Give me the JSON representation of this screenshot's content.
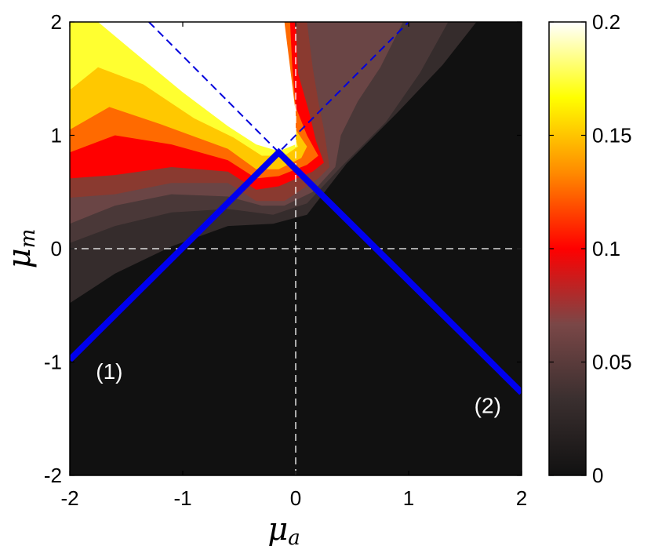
{
  "chart_data": {
    "type": "heatmap",
    "title": "",
    "xlabel": "μ",
    "xlabel_sub": "a",
    "ylabel": "μ",
    "ylabel_sub": "m",
    "xlim": [
      -2,
      2
    ],
    "ylim": [
      -2,
      2
    ],
    "x_ticks": [
      -2,
      -1,
      0,
      1,
      2
    ],
    "y_ticks": [
      -2,
      -1,
      0,
      1,
      2
    ],
    "x_tick_labels": [
      "-2",
      "-1",
      "0",
      "1",
      "2"
    ],
    "y_tick_labels": [
      "-2",
      "-1",
      "0",
      "1",
      "2"
    ],
    "colorbar": {
      "range": [
        0,
        0.2
      ],
      "ticks": [
        0,
        0.05,
        0.1,
        0.15,
        0.2
      ],
      "tick_labels": [
        "0",
        "0.05",
        "0.1",
        "0.15",
        "0.2"
      ],
      "colormap": "hot",
      "colors": [
        "#111111",
        "#3a2f2f",
        "#7a4747",
        "#ff0000",
        "#ff8a00",
        "#ffff00",
        "#ffffff"
      ]
    },
    "contour_levels": [
      {
        "level": 0.01,
        "color": "#352c2c",
        "points": [
          [
            -2,
            -0.48
          ],
          [
            -1.6,
            -0.22
          ],
          [
            -1.1,
            0.02
          ],
          [
            -0.6,
            0.2
          ],
          [
            -0.2,
            0.22
          ],
          [
            0.1,
            0.3
          ],
          [
            0.45,
            0.75
          ],
          [
            0.9,
            1.2
          ],
          [
            1.3,
            1.62
          ],
          [
            1.6,
            2.0
          ],
          [
            -2,
            2.0
          ]
        ]
      },
      {
        "level": 0.02,
        "color": "#4a3838",
        "points": [
          [
            -2,
            0.05
          ],
          [
            -1.6,
            0.2
          ],
          [
            -1.1,
            0.32
          ],
          [
            -0.6,
            0.35
          ],
          [
            -0.2,
            0.3
          ],
          [
            0.1,
            0.4
          ],
          [
            0.4,
            0.72
          ],
          [
            0.8,
            1.12
          ],
          [
            1.1,
            1.55
          ],
          [
            1.35,
            2.0
          ],
          [
            -2,
            2.0
          ]
        ]
      },
      {
        "level": 0.03,
        "color": "#6a4545",
        "points": [
          [
            -2,
            0.22
          ],
          [
            -1.6,
            0.38
          ],
          [
            -1.1,
            0.48
          ],
          [
            -0.6,
            0.46
          ],
          [
            -0.3,
            0.38
          ],
          [
            -0.1,
            0.38
          ],
          [
            0.15,
            0.5
          ],
          [
            0.35,
            0.72
          ],
          [
            0.4,
            1.0
          ],
          [
            0.55,
            1.3
          ],
          [
            0.75,
            1.6
          ],
          [
            0.95,
            2.0
          ],
          [
            -2,
            2.0
          ]
        ]
      },
      {
        "level": 0.05,
        "color": "#8a3a30",
        "points": [
          [
            -2,
            0.45
          ],
          [
            -1.6,
            0.48
          ],
          [
            -1.1,
            0.58
          ],
          [
            -0.6,
            0.58
          ],
          [
            -0.35,
            0.42
          ],
          [
            -0.1,
            0.42
          ],
          [
            0.2,
            0.62
          ],
          [
            0.3,
            0.72
          ],
          [
            0.25,
            1.05
          ],
          [
            0.2,
            1.3
          ],
          [
            0.15,
            1.6
          ],
          [
            0.1,
            2.0
          ],
          [
            -2,
            2.0
          ]
        ]
      },
      {
        "level": 0.08,
        "color": "#ff0000",
        "points": [
          [
            -2,
            0.62
          ],
          [
            -1.6,
            0.65
          ],
          [
            -1.1,
            0.72
          ],
          [
            -0.6,
            0.68
          ],
          [
            -0.35,
            0.52
          ],
          [
            -0.15,
            0.55
          ],
          [
            0.15,
            0.68
          ],
          [
            0.25,
            0.76
          ],
          [
            0.18,
            0.95
          ],
          [
            0.12,
            1.2
          ],
          [
            0.02,
            1.55
          ],
          [
            0.0,
            2.0
          ],
          [
            -2,
            2.0
          ]
        ]
      },
      {
        "level": 0.11,
        "color": "#ff6a00",
        "points": [
          [
            -2,
            0.85
          ],
          [
            -1.6,
            1.0
          ],
          [
            -1.1,
            0.92
          ],
          [
            -0.6,
            0.78
          ],
          [
            -0.35,
            0.62
          ],
          [
            -0.15,
            0.64
          ],
          [
            0.1,
            0.74
          ],
          [
            0.2,
            0.82
          ],
          [
            0.1,
            1.0
          ],
          [
            0.0,
            1.25
          ],
          [
            -0.03,
            1.6
          ],
          [
            -0.05,
            2.0
          ],
          [
            -2,
            2.0
          ]
        ]
      },
      {
        "level": 0.14,
        "color": "#ffc800",
        "points": [
          [
            -2,
            1.05
          ],
          [
            -1.65,
            1.25
          ],
          [
            -1.2,
            1.1
          ],
          [
            -0.6,
            0.88
          ],
          [
            -0.35,
            0.7
          ],
          [
            -0.15,
            0.7
          ],
          [
            0.05,
            0.8
          ],
          [
            0.1,
            0.9
          ],
          [
            0.0,
            1.05
          ],
          [
            -0.05,
            1.3
          ],
          [
            -0.08,
            1.6
          ],
          [
            -0.1,
            2.0
          ],
          [
            -2,
            2.0
          ]
        ]
      },
      {
        "level": 0.17,
        "color": "#ffff30",
        "points": [
          [
            -2,
            1.4
          ],
          [
            -1.75,
            1.6
          ],
          [
            -1.35,
            1.45
          ],
          [
            -0.9,
            1.15
          ],
          [
            -0.55,
            0.98
          ],
          [
            -0.3,
            0.82
          ],
          [
            -0.1,
            0.82
          ],
          [
            0.02,
            0.9
          ],
          [
            -0.05,
            1.1
          ],
          [
            -0.12,
            1.4
          ],
          [
            -0.15,
            2.0
          ],
          [
            -2,
            2.0
          ]
        ]
      },
      {
        "level": 0.2,
        "color": "#ffffff",
        "points": [
          [
            -1.75,
            2.0
          ],
          [
            -1.45,
            1.75
          ],
          [
            -1.0,
            1.38
          ],
          [
            -0.6,
            1.08
          ],
          [
            -0.35,
            0.92
          ],
          [
            -0.15,
            0.86
          ],
          [
            0.0,
            0.92
          ],
          [
            0.0,
            1.2
          ],
          [
            -0.05,
            1.6
          ],
          [
            -0.1,
            2.0
          ]
        ]
      }
    ],
    "line_series": [
      {
        "style": "solid-thick",
        "color": "#0000ee",
        "x": [
          -2,
          -0.15,
          2
        ],
        "y": [
          -0.98,
          0.85,
          -1.27
        ]
      }
    ],
    "dashed_series": [
      {
        "style": "dashed",
        "color": "#0000dd",
        "x": [
          -1.3,
          -0.15,
          1.0
        ],
        "y": [
          2.0,
          0.85,
          2.0
        ]
      }
    ],
    "reference_lines": {
      "x0": 0,
      "y0": 0,
      "color": "#ffffff",
      "style": "dashed"
    },
    "annotations": [
      {
        "text": "(1)",
        "x": -1.65,
        "y": -1.15
      },
      {
        "text": "(2)",
        "x": 1.7,
        "y": -1.45
      }
    ]
  }
}
